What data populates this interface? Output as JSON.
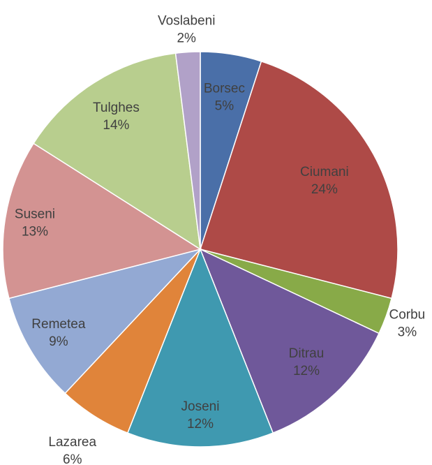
{
  "chart_data": {
    "type": "pie",
    "categories": [
      "Borsec",
      "Ciumani",
      "Corbu",
      "Ditrau",
      "Joseni",
      "Lazarea",
      "Remetea",
      "Suseni",
      "Tulghes",
      "Voslabeni"
    ],
    "values": [
      5,
      24,
      3,
      12,
      12,
      6,
      9,
      13,
      14,
      2
    ],
    "value_labels": [
      "5%",
      "24%",
      "3%",
      "12%",
      "12%",
      "6%",
      "9%",
      "13%",
      "14%",
      "2%"
    ],
    "colors": [
      "#4a6fa8",
      "#ae4a47",
      "#88aa48",
      "#6f589a",
      "#3f99b0",
      "#e0843a",
      "#93a9d3",
      "#d39392",
      "#b8ce8e",
      "#b1a1c8"
    ]
  }
}
